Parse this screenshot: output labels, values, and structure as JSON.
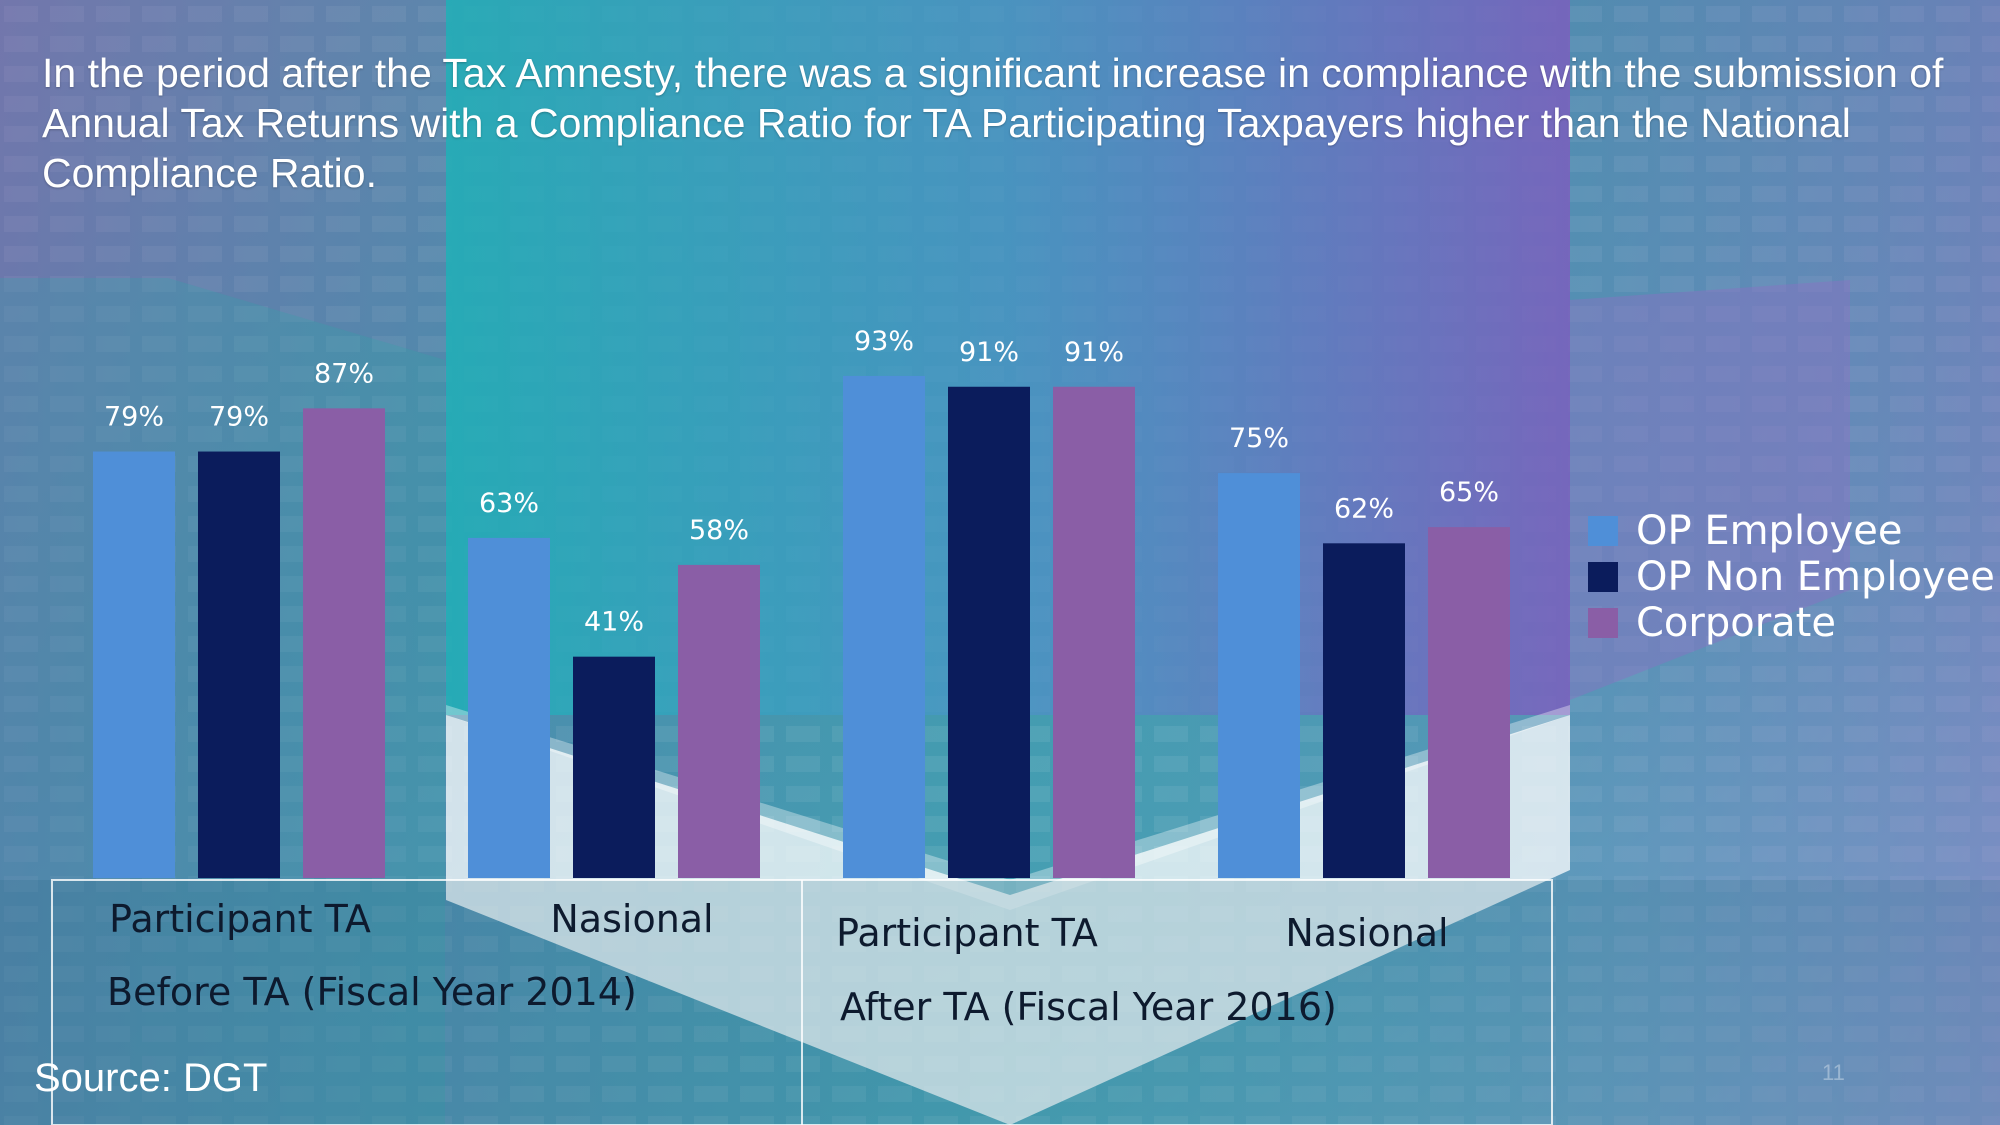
{
  "headline": "In the period after the Tax Amnesty, there was a significant increase in compliance with the submission of Annual Tax Returns with a Compliance Ratio for TA Participating Taxpayers higher than the National Compliance Ratio.",
  "source": "Source: DGT",
  "page_number": "11",
  "colors": {
    "op_employee": "#4f8fd8",
    "op_non_employee": "#0b1c5c",
    "corporate": "#8a5ea6"
  },
  "chart_data": {
    "type": "bar",
    "categories": [
      "Participant TA",
      "Nasional",
      "Participant TA",
      "Nasional"
    ],
    "groups": [
      "Before TA   (Fiscal Year 2014)",
      "After TA (Fiscal Year 2016)"
    ],
    "series": [
      {
        "name": "OP Employee",
        "values": [
          79,
          63,
          93,
          75
        ],
        "labels": [
          "79%",
          "63%",
          "93%",
          "75%"
        ]
      },
      {
        "name": "OP Non Employee",
        "values": [
          79,
          41,
          91,
          62
        ],
        "labels": [
          "79%",
          "41%",
          "91%",
          "62%"
        ]
      },
      {
        "name": "Corporate",
        "values": [
          87,
          58,
          91,
          65
        ],
        "labels": [
          "87%",
          "58%",
          "91%",
          "65%"
        ]
      }
    ],
    "ylim": [
      0,
      100
    ],
    "legend_position": "right"
  }
}
